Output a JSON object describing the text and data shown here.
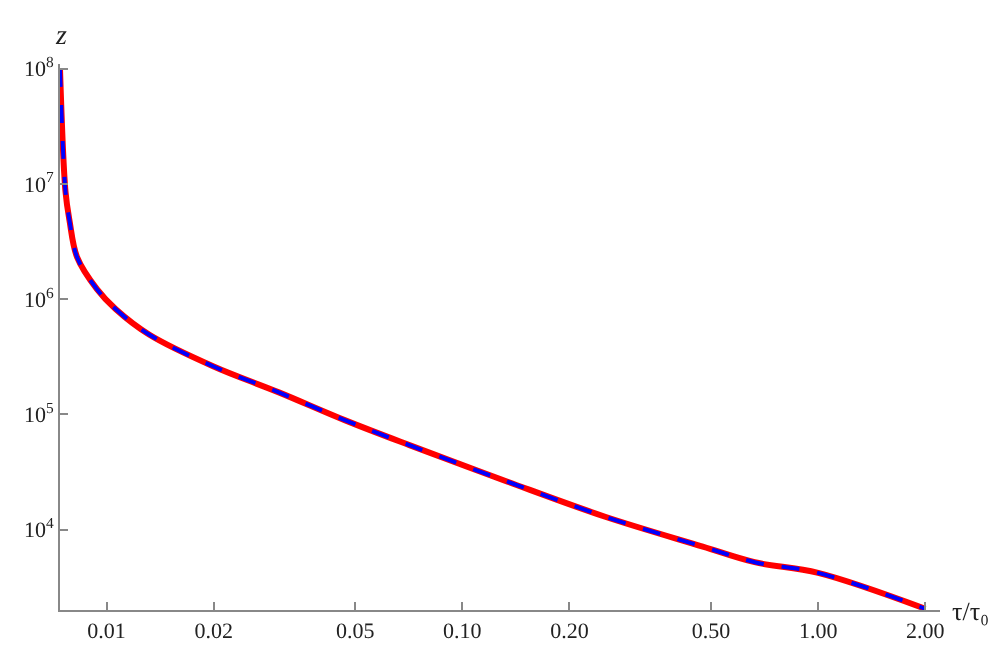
{
  "chart_data": {
    "type": "line",
    "xlabel": "τ/τ₀",
    "ylabel": "z",
    "log": "xy",
    "marker": "none",
    "x": [
      0.0074,
      0.00767,
      0.00787,
      0.00827,
      0.0094,
      0.0106,
      0.0132,
      0.02,
      0.0305,
      0.0467,
      0.071,
      0.134,
      0.252,
      0.474,
      0.663,
      1.0,
      2.0
    ],
    "series": [
      {
        "color": "#ff0000",
        "line_style": "solid",
        "values": [
          100000000.0,
          8500000.0,
          4800000.0,
          2300000.0,
          1220000.0,
          820000.0,
          490000.0,
          260000.0,
          155000.0,
          89000.0,
          54000.0,
          26000.0,
          12900.0,
          7100,
          5200,
          4200,
          2050
        ]
      },
      {
        "color": "#0000ff",
        "line_style": "dashed",
        "values": [
          100000000.0,
          8500000.0,
          4800000.0,
          2300000.0,
          1220000.0,
          820000.0,
          490000.0,
          260000.0,
          155000.0,
          89000.0,
          54000.0,
          26000.0,
          12900.0,
          7100,
          5200,
          4200,
          2050
        ]
      }
    ],
    "xlim": [
      0.0074,
      2.2
    ],
    "xticks": [
      {
        "value": 0.01,
        "label": "0.01"
      },
      {
        "value": 0.02,
        "label": "0.02"
      },
      {
        "value": 0.05,
        "label": "0.05"
      },
      {
        "value": 0.1,
        "label": "0.10"
      },
      {
        "value": 0.2,
        "label": "0.20"
      },
      {
        "value": 0.5,
        "label": "0.50"
      },
      {
        "value": 1,
        "label": "1.00"
      },
      {
        "value": 2,
        "label": "2.00"
      }
    ],
    "ylim": [
      2000,
      110000000.0
    ],
    "yticks": [
      {
        "value": 10000,
        "label": "10$^{4}$"
      },
      {
        "value": 100000,
        "label": "10$^{5}$"
      },
      {
        "value": 1000000,
        "label": "10$^{6}$"
      },
      {
        "value": 10000000,
        "label": "10$^{7}$"
      },
      {
        "value": 100000000,
        "label": "10$^{8}$"
      }
    ]
  }
}
